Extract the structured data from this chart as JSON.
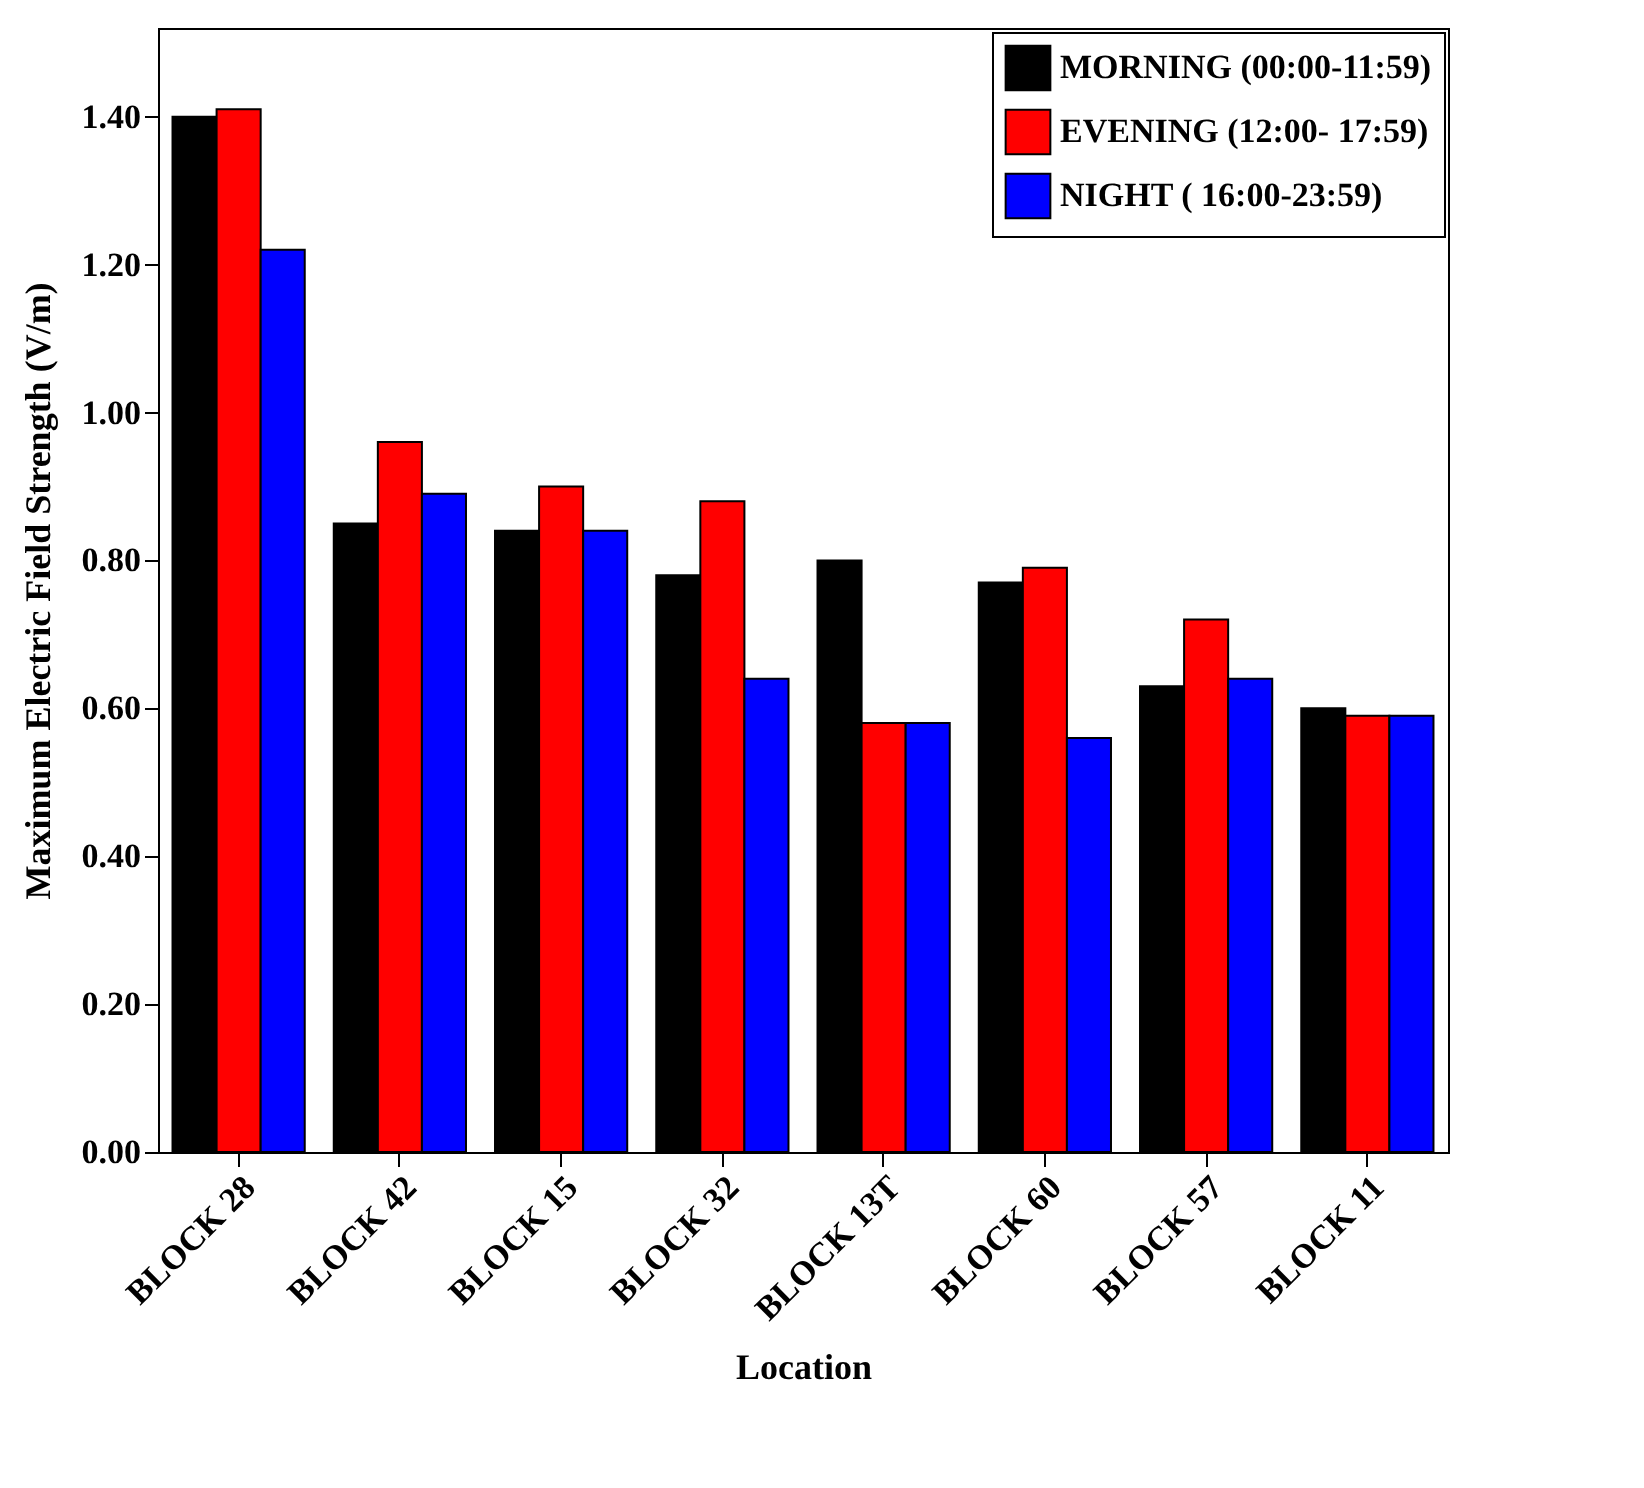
{
  "chart_data": {
    "type": "bar",
    "xlabel": "Location",
    "ylabel": "Maximum Electric Field Strength (V/m)",
    "categories": [
      "BLOCK 28",
      "BLOCK 42",
      "BLOCK 15",
      "BLOCK 32",
      "BLOCK 13T",
      "BLOCK 60",
      "BLOCK 57",
      "BLOCK 11"
    ],
    "series": [
      {
        "name": "MORNING (00:00-11:59)",
        "color": "#000000",
        "values": [
          1.4,
          0.85,
          0.84,
          0.78,
          0.8,
          0.77,
          0.63,
          0.6
        ]
      },
      {
        "name": "EVENING (12:00- 17:59)",
        "color": "#ff0000",
        "values": [
          1.41,
          0.96,
          0.9,
          0.88,
          0.58,
          0.79,
          0.72,
          0.59
        ]
      },
      {
        "name": "NIGHT ( 16:00-23:59)",
        "color": "#0000ff",
        "values": [
          1.22,
          0.89,
          0.84,
          0.64,
          0.58,
          0.56,
          0.64,
          0.59
        ]
      }
    ],
    "ylim": [
      0,
      1.52
    ],
    "yticks": [
      {
        "value": 0,
        "label": "0.00"
      },
      {
        "value": 0.2,
        "label": "0.20"
      },
      {
        "value": 0.4,
        "label": "0.40"
      },
      {
        "value": 0.6,
        "label": "0.60"
      },
      {
        "value": 0.8,
        "label": "0.80"
      },
      {
        "value": 1,
        "label": "1.00"
      },
      {
        "value": 1.2,
        "label": "1.20"
      },
      {
        "value": 1.4,
        "label": "1.40"
      }
    ],
    "legend": "top right",
    "grid": false
  }
}
